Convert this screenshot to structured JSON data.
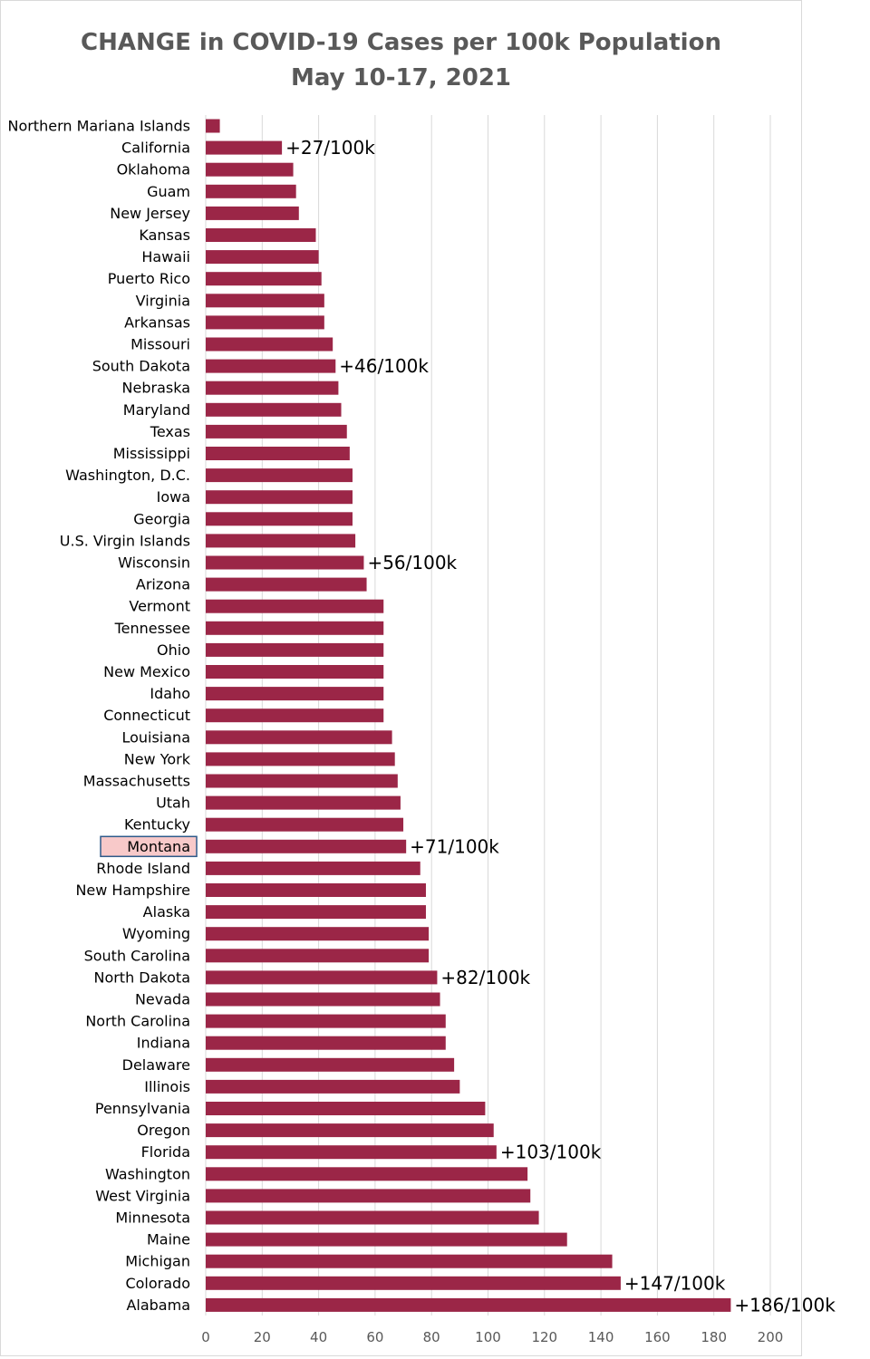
{
  "chart_data": {
    "type": "bar",
    "orientation": "horizontal",
    "title": "CHANGE in COVID-19 Cases per 100k Population",
    "subtitle": "May 10-17, 2021",
    "categories": [
      "Northern Mariana Islands",
      "California",
      "Oklahoma",
      "Guam",
      "New Jersey",
      "Kansas",
      "Hawaii",
      "Puerto Rico",
      "Virginia",
      "Arkansas",
      "Missouri",
      "South Dakota",
      "Nebraska",
      "Maryland",
      "Texas",
      "Mississippi",
      "Washington, D.C.",
      "Iowa",
      "Georgia",
      "U.S. Virgin Islands",
      "Wisconsin",
      "Arizona",
      "Vermont",
      "Tennessee",
      "Ohio",
      "New Mexico",
      "Idaho",
      "Connecticut",
      "Louisiana",
      "New York",
      "Massachusetts",
      "Utah",
      "Kentucky",
      "Montana",
      "Rhode Island",
      "New Hampshire",
      "Alaska",
      "Wyoming",
      "South Carolina",
      "North Dakota",
      "Nevada",
      "North Carolina",
      "Indiana",
      "Delaware",
      "Illinois",
      "Pennsylvania",
      "Oregon",
      "Florida",
      "Washington",
      "West Virginia",
      "Minnesota",
      "Maine",
      "Michigan",
      "Colorado",
      "Alabama"
    ],
    "values": [
      5,
      27,
      31,
      32,
      33,
      39,
      40,
      41,
      42,
      42,
      45,
      46,
      47,
      48,
      50,
      51,
      52,
      52,
      52,
      53,
      56,
      57,
      63,
      63,
      63,
      63,
      63,
      63,
      66,
      67,
      68,
      69,
      70,
      71,
      76,
      78,
      78,
      79,
      79,
      82,
      83,
      85,
      85,
      88,
      90,
      99,
      102,
      103,
      114,
      115,
      118,
      128,
      144,
      147,
      186
    ],
    "data_labels": [
      {
        "category": "California",
        "text": "+27/100k"
      },
      {
        "category": "South Dakota",
        "text": "+46/100k"
      },
      {
        "category": "Wisconsin",
        "text": "+56/100k"
      },
      {
        "category": "Montana",
        "text": "+71/100k"
      },
      {
        "category": "North Dakota",
        "text": "+82/100k"
      },
      {
        "category": "Florida",
        "text": "+103/100k"
      },
      {
        "category": "Colorado",
        "text": "+147/100k"
      },
      {
        "category": "Alabama",
        "text": "+186/100k"
      }
    ],
    "highlight": "Montana",
    "highlight_colors": {
      "fill": "#f8c9c9",
      "border": "#2e5a8a"
    },
    "xlim": [
      0,
      200
    ],
    "xticks": [
      0,
      20,
      40,
      60,
      80,
      100,
      120,
      140,
      160,
      180,
      200
    ],
    "grid": "vertical",
    "legend": "none",
    "bar_color": "#9b2647",
    "grid_color": "#d9d9d9"
  }
}
